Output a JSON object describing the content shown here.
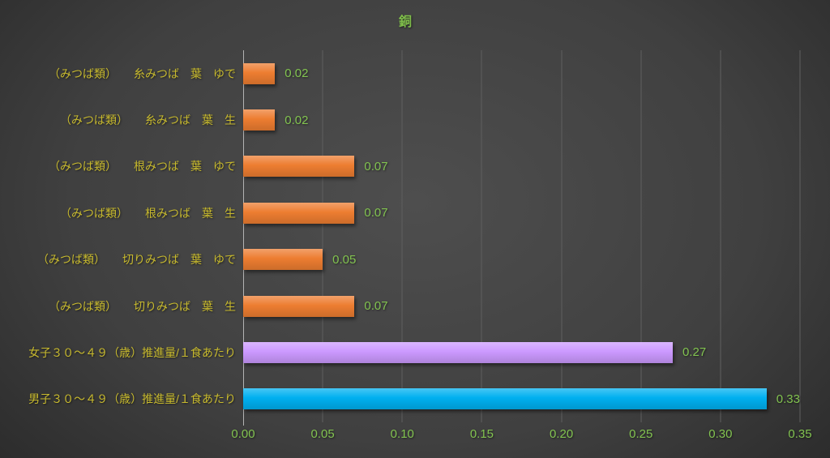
{
  "chart_data": {
    "type": "bar",
    "orientation": "horizontal",
    "title": "銅",
    "xlabel": "",
    "ylabel": "",
    "xlim": [
      0,
      0.35
    ],
    "xticks": [
      0,
      0.05,
      0.1,
      0.15,
      0.2,
      0.25,
      0.3,
      0.35
    ],
    "xtick_labels": [
      "0.00",
      "0.05",
      "0.10",
      "0.15",
      "0.20",
      "0.25",
      "0.30",
      "0.35"
    ],
    "grid": "vertical-on",
    "legend": "none",
    "categories": [
      "（みつば類）　　糸みつば　葉　ゆで",
      "（みつば類）　　糸みつば　葉　生",
      "（みつば類）　　根みつば　葉　ゆで",
      "（みつば類）　　根みつば　葉　生",
      "（みつば類）　　切りみつば　葉　ゆで",
      "（みつば類）　　切りみつば　葉　生",
      "女子３０～４９（歳）推進量/１食あたり",
      "男子３０～４９（歳）推進量/１食あたり"
    ],
    "values": [
      0.02,
      0.02,
      0.07,
      0.07,
      0.05,
      0.07,
      0.27,
      0.33
    ],
    "value_labels": [
      "0.02",
      "0.02",
      "0.07",
      "0.07",
      "0.05",
      "0.07",
      "0.27",
      "0.33"
    ],
    "bar_colors": [
      "#ED7D31",
      "#ED7D31",
      "#ED7D31",
      "#ED7D31",
      "#ED7D31",
      "#ED7D31",
      "#CC99FF",
      "#00B0F0"
    ],
    "colors": {
      "title_color": "#7FBE4A",
      "category_color": "#C8BA2E",
      "value_color": "#82C350",
      "tick_color": "#82C350",
      "gridline_color": "#5F5F5F",
      "axis_color": "#B3B3B3",
      "bg_center": "#4E4E4E",
      "bg_mid": "#404040",
      "bg_edge": "#262626"
    }
  }
}
